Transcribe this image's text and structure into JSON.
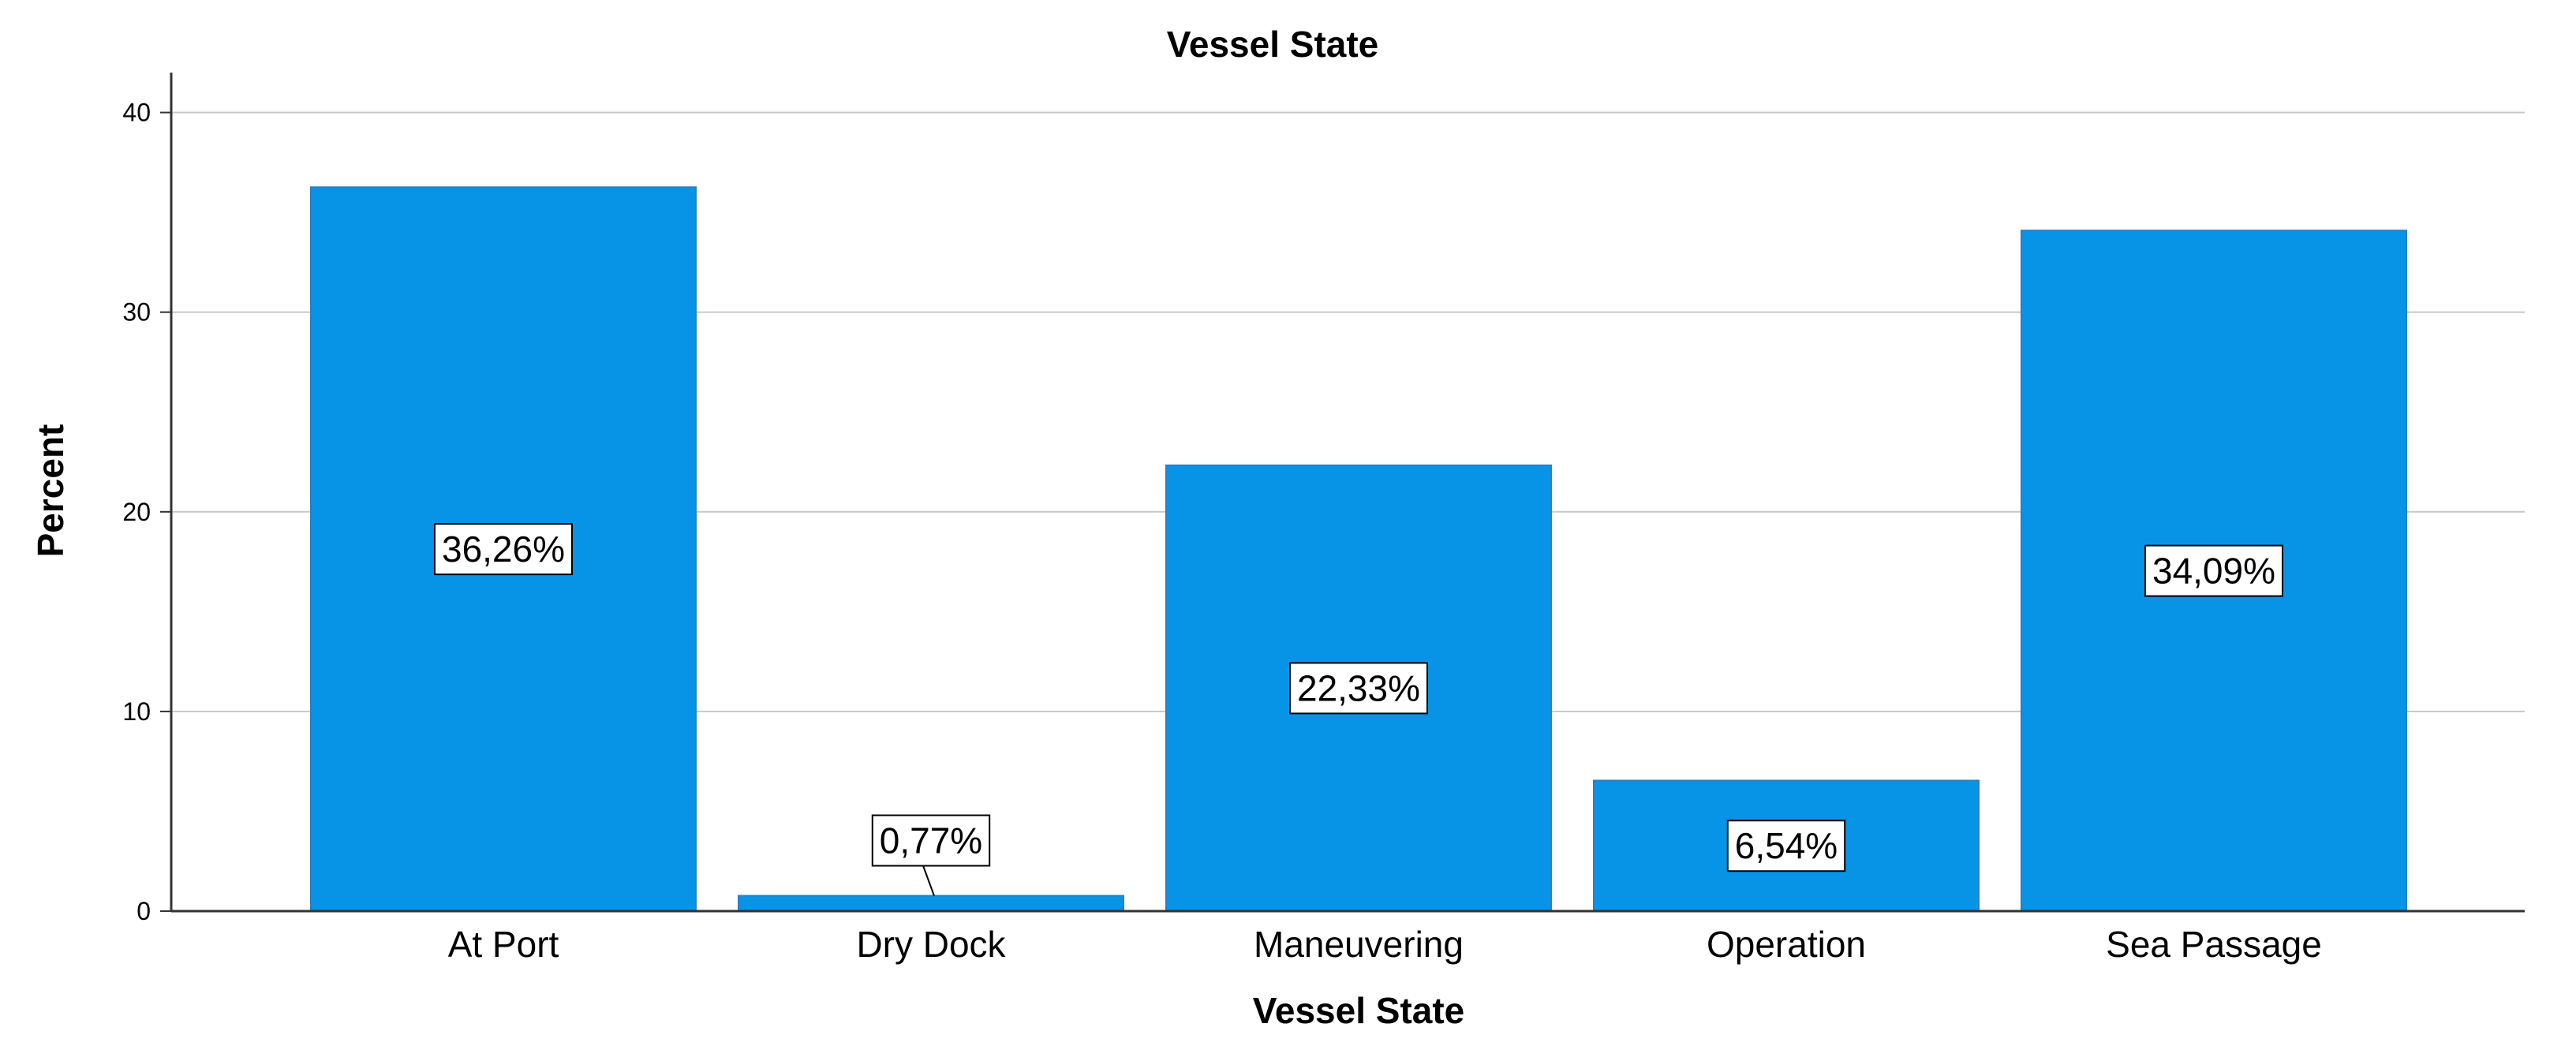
{
  "colors": {
    "bar_fill": "#0894e6",
    "bar_stroke": "#2a7fc4",
    "grid": "#c8c8c8",
    "axis": "#333333",
    "label_box_fill": "#ffffff",
    "label_box_stroke": "#000000"
  },
  "chart_data": {
    "type": "bar",
    "title": "Vessel State",
    "xlabel": "Vessel State",
    "ylabel": "Percent",
    "categories": [
      "At Port",
      "Dry Dock",
      "Maneuvering",
      "Operation",
      "Sea Passage"
    ],
    "values": [
      36.26,
      0.77,
      22.33,
      6.54,
      34.09
    ],
    "data_labels": [
      "36,26%",
      "0,77%",
      "22,33%",
      "6,54%",
      "34,09%"
    ],
    "yticks": [
      0,
      10,
      20,
      30,
      40
    ],
    "ytick_labels": [
      "0",
      "10",
      "20",
      "30",
      "40"
    ],
    "ylim": [
      0,
      42
    ],
    "grid": true,
    "legend": "none"
  }
}
